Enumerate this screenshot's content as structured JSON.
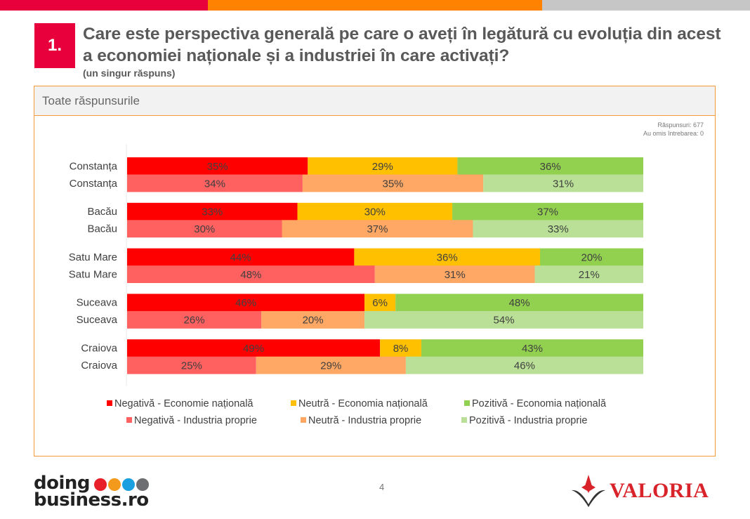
{
  "header": {
    "question_number": "1.",
    "question_title": "Care este perspectiva generală pe care o aveți în legătură cu evoluția din acest a economiei naționale și a industriei în care activați?",
    "question_subtitle": "(un singur răspuns)"
  },
  "panel": {
    "title": "Toate răspunsurile",
    "responses_label": "Răspunsuri: 677",
    "skipped_label": "Au omis întrebarea: 0"
  },
  "chart_data": {
    "type": "bar",
    "orientation": "horizontal",
    "stacked": "100%",
    "categories": [
      "Constanța",
      "Constanța",
      "Bacău",
      "Bacău",
      "Satu Mare",
      "Satu Mare",
      "Suceava",
      "Suceava",
      "Craiova",
      "Craiova"
    ],
    "row_kind": [
      "economie",
      "industrie",
      "economie",
      "industrie",
      "economie",
      "industrie",
      "economie",
      "industrie",
      "economie",
      "industrie"
    ],
    "series": [
      {
        "name": "Negativă - Economie națională",
        "color": "#ff0000",
        "values": [
          35,
          null,
          33,
          null,
          44,
          null,
          46,
          null,
          49,
          null
        ]
      },
      {
        "name": "Neutră - Economia națională",
        "color": "#ffc000",
        "values": [
          29,
          null,
          30,
          null,
          36,
          null,
          6,
          null,
          8,
          null
        ]
      },
      {
        "name": "Pozitivă - Economia națională",
        "color": "#92d050",
        "values": [
          36,
          null,
          37,
          null,
          20,
          null,
          48,
          null,
          43,
          null
        ]
      },
      {
        "name": "Negativă - Industria proprie",
        "color": "#ff6060",
        "values": [
          null,
          34,
          null,
          30,
          null,
          48,
          null,
          26,
          null,
          25
        ]
      },
      {
        "name": "Neutră - Industria proprie",
        "color": "#ffa764",
        "values": [
          null,
          35,
          null,
          37,
          null,
          31,
          null,
          20,
          null,
          29
        ]
      },
      {
        "name": "Pozitivă - Industria proprie",
        "color": "#b9e096",
        "values": [
          null,
          31,
          null,
          33,
          null,
          21,
          null,
          54,
          null,
          46
        ]
      }
    ],
    "value_format": "{v}%",
    "xlim": [
      0,
      100
    ],
    "grid": false,
    "legend_position": "bottom",
    "title": "",
    "xlabel": "",
    "ylabel": ""
  },
  "footer": {
    "left_logo_line1": "doing",
    "left_logo_line2": "business.ro",
    "logo_dot_colors": [
      "#e8202a",
      "#f39a1c",
      "#1aa0e0",
      "#6d6e71"
    ],
    "page_number": "4",
    "right_logo": "VALORIA"
  },
  "colors": {
    "accent_red": "#e8003d",
    "accent_orange": "#ff8200",
    "panel_border": "#f39a3a"
  }
}
